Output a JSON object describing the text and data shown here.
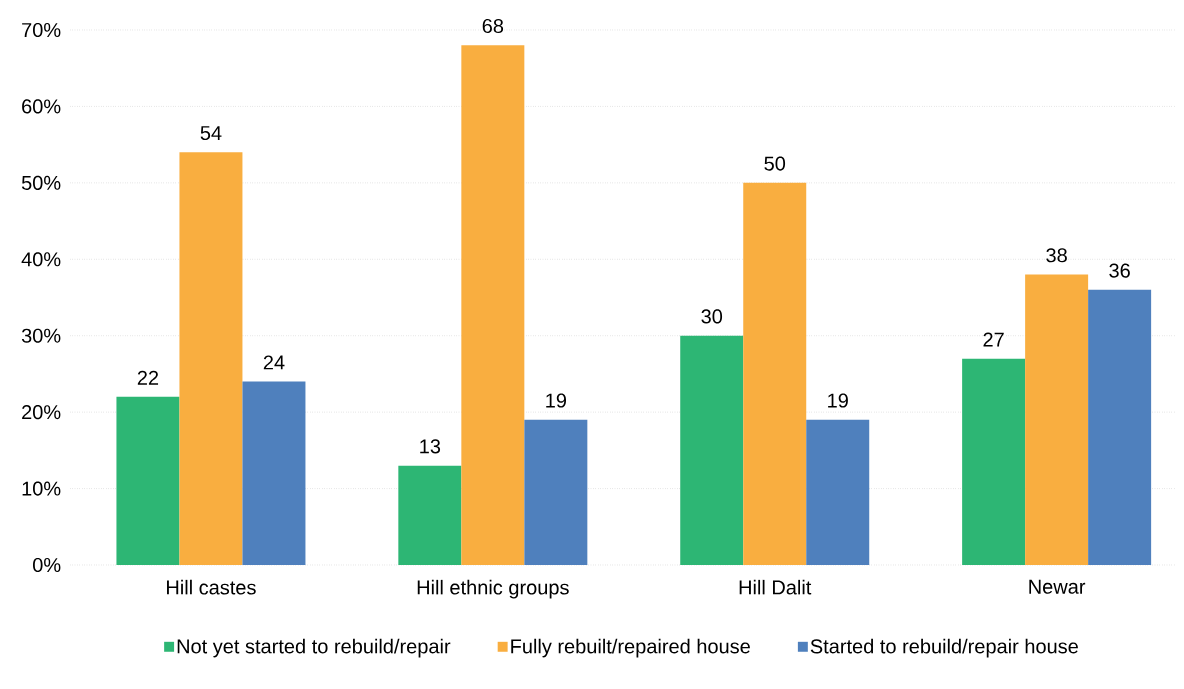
{
  "chart_data": {
    "type": "bar",
    "categories": [
      "Hill castes",
      "Hill ethnic groups",
      "Hill Dalit",
      "Newar"
    ],
    "series": [
      {
        "name": "Not yet started to rebuild/repair",
        "color": "#2db674",
        "values": [
          22,
          13,
          30,
          27
        ]
      },
      {
        "name": "Fully rebuilt/repaired house",
        "color": "#f9ae40",
        "values": [
          54,
          68,
          50,
          38
        ]
      },
      {
        "name": "Started to rebuild/repair  house",
        "color": "#4f80bd",
        "values": [
          24,
          19,
          19,
          36
        ]
      }
    ],
    "ylim": [
      0,
      70
    ],
    "yticks": [
      {
        "value": 0,
        "label": "0%"
      },
      {
        "value": 10,
        "label": "10%"
      },
      {
        "value": 20,
        "label": "20%"
      },
      {
        "value": 30,
        "label": "30%"
      },
      {
        "value": 40,
        "label": "40%"
      },
      {
        "value": 50,
        "label": "50%"
      },
      {
        "value": 60,
        "label": "60%"
      },
      {
        "value": 70,
        "label": "70%"
      }
    ],
    "grid": "y",
    "legend": "bottom",
    "data_labels": true
  }
}
